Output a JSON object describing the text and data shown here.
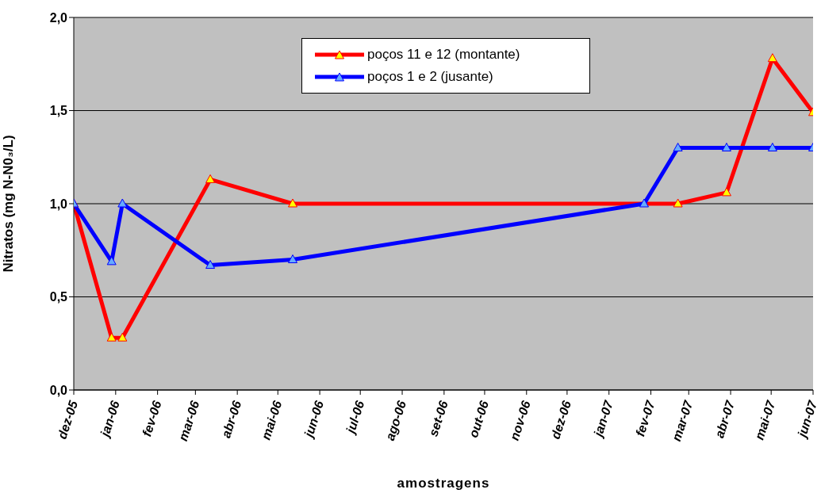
{
  "chart_data": {
    "type": "line",
    "xlabel": "amostragens",
    "ylabel": "Nitratos (mg N-N0₃/L)",
    "ylim": [
      0,
      2
    ],
    "yticks": [
      {
        "value": 0,
        "label": "0,0"
      },
      {
        "value": 0.5,
        "label": "0,5"
      },
      {
        "value": 1,
        "label": "1,0"
      },
      {
        "value": 1.5,
        "label": "1,5"
      },
      {
        "value": 2,
        "label": "2,0"
      }
    ],
    "xlim": [
      "2005-12-01",
      "2007-06-01"
    ],
    "xticks": [
      {
        "value": "2005-12-01",
        "label": "dez-05"
      },
      {
        "value": "2006-01-01",
        "label": "jan-06"
      },
      {
        "value": "2006-02-01",
        "label": "fev-06"
      },
      {
        "value": "2006-03-01",
        "label": "mar-06"
      },
      {
        "value": "2006-04-01",
        "label": "abr-06"
      },
      {
        "value": "2006-05-01",
        "label": "mai-06"
      },
      {
        "value": "2006-06-01",
        "label": "jun-06"
      },
      {
        "value": "2006-07-01",
        "label": "jul-06"
      },
      {
        "value": "2006-08-01",
        "label": "ago-06"
      },
      {
        "value": "2006-09-01",
        "label": "set-06"
      },
      {
        "value": "2006-10-01",
        "label": "out-06"
      },
      {
        "value": "2006-11-01",
        "label": "nov-06"
      },
      {
        "value": "2006-12-01",
        "label": "dez-06"
      },
      {
        "value": "2007-01-01",
        "label": "jan-07"
      },
      {
        "value": "2007-02-01",
        "label": "fev-07"
      },
      {
        "value": "2007-03-01",
        "label": "mar-07"
      },
      {
        "value": "2007-04-01",
        "label": "abr-07"
      },
      {
        "value": "2007-05-01",
        "label": "mai-07"
      },
      {
        "value": "2007-06-01",
        "label": "jun-07"
      }
    ],
    "grid": "y",
    "legend": "top",
    "marker": "triangle",
    "line_style": "solid",
    "series": [
      {
        "name": "poços 11 e 12 (montante)",
        "color": "#ff0000",
        "x": [
          "2005-12-01",
          "2005-12-29",
          "2006-01-06",
          "2006-03-12",
          "2006-05-12",
          "2007-02-21",
          "2007-03-29",
          "2007-05-02",
          "2007-06-01"
        ],
        "values": [
          1.0,
          0.28,
          0.28,
          1.13,
          1.0,
          1.0,
          1.06,
          1.78,
          1.49
        ]
      },
      {
        "name": "poços 1 e 2 (jusante)",
        "color": "#0000ff",
        "x": [
          "2005-12-01",
          "2005-12-29",
          "2006-01-06",
          "2006-03-12",
          "2006-05-12",
          "2007-01-27",
          "2007-02-21",
          "2007-03-29",
          "2007-05-02",
          "2007-06-01"
        ],
        "values": [
          1.0,
          0.69,
          1.0,
          0.67,
          0.7,
          1.0,
          1.3,
          1.3,
          1.3,
          1.3
        ]
      }
    ]
  }
}
